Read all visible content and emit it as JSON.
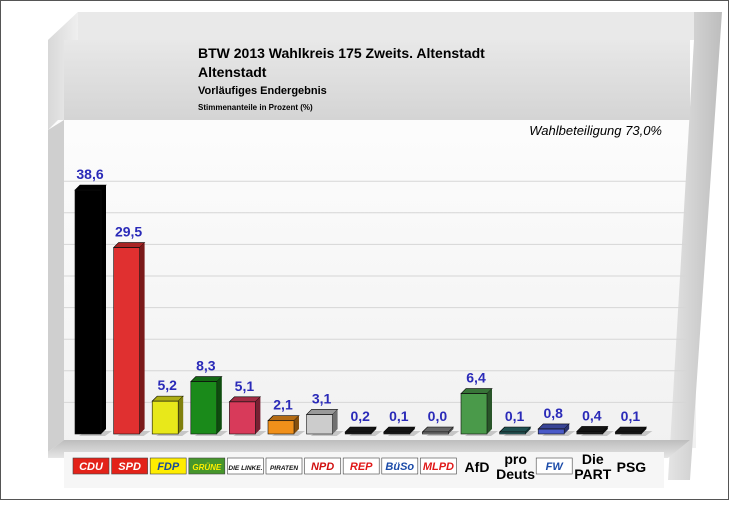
{
  "header": {
    "title_line1": "BTW 2013 Wahlkreis 175 Zweits. Altenstadt",
    "title_line2": "Altenstadt",
    "subtitle": "Vorläufiges Endergebnis",
    "unit_note": "Stimmenanteile in Prozent (%)",
    "turnout": "Wahlbeteiligung 73,0%"
  },
  "chart_data": {
    "type": "bar",
    "title": "BTW 2013 Wahlkreis 175 Zweits. Altenstadt",
    "ylim": [
      0,
      40
    ],
    "grid": true,
    "categories": [
      "CDU",
      "SPD",
      "FDP",
      "GRÜNE",
      "DIE LINKE.",
      "PIRATEN",
      "NPD",
      "REP",
      "BüSo",
      "MLPD",
      "AfD",
      "pro Deuts",
      "FW",
      "Die PART",
      "PSG"
    ],
    "values": [
      38.6,
      29.5,
      5.2,
      8.3,
      5.1,
      2.1,
      3.1,
      0.2,
      0.1,
      0.0,
      6.4,
      0.1,
      0.8,
      0.4,
      0.1
    ],
    "value_labels": [
      "38,6",
      "29,5",
      "5,2",
      "8,3",
      "5,1",
      "2,1",
      "3,1",
      "0,2",
      "0,1",
      "0,0",
      "6,4",
      "0,1",
      "0,8",
      "0,4",
      "0,1"
    ],
    "colors": [
      "#000000",
      "#e03030",
      "#e8e81a",
      "#1a8a1a",
      "#d83a5a",
      "#f0901a",
      "#cccccc",
      "#1a1a1a",
      "#1a1a1a",
      "#888888",
      "#4a9a4a",
      "#2a6a6a",
      "#4a5ac8",
      "#1a1a1a",
      "#1a1a1a"
    ],
    "label_color": "#2a2ab8",
    "legend": [
      {
        "kind": "logo",
        "text": "CDU",
        "bg": "#e32219",
        "fg": "#ffffff"
      },
      {
        "kind": "logo",
        "text": "SPD",
        "bg": "#e32219",
        "fg": "#ffffff"
      },
      {
        "kind": "logo",
        "text": "FDP",
        "bg": "#ffed00",
        "fg": "#1a4a9a"
      },
      {
        "kind": "logo",
        "text": "GRÜNE",
        "bg": "#46962b",
        "fg": "#ffee00"
      },
      {
        "kind": "logo",
        "text": "DIE LINKE.",
        "bg": "#ffffff",
        "fg": "#111111"
      },
      {
        "kind": "logo",
        "text": "PIRATEN",
        "bg": "#ffffff",
        "fg": "#111111"
      },
      {
        "kind": "logo",
        "text": "NPD",
        "bg": "#ffffff",
        "fg": "#d01010"
      },
      {
        "kind": "logo",
        "text": "REP",
        "bg": "#ffffff",
        "fg": "#e01818"
      },
      {
        "kind": "logo",
        "text": "BüSo",
        "bg": "#ffffff",
        "fg": "#1a4aa8"
      },
      {
        "kind": "logo",
        "text": "MLPD",
        "bg": "#ffffff",
        "fg": "#e01818"
      },
      {
        "kind": "text",
        "lines": [
          "AfD"
        ]
      },
      {
        "kind": "text",
        "lines": [
          "pro",
          "Deuts"
        ]
      },
      {
        "kind": "logo",
        "text": "FW",
        "bg": "#ffffff",
        "fg": "#1a4aa8"
      },
      {
        "kind": "text",
        "lines": [
          "Die",
          "PART"
        ]
      },
      {
        "kind": "text",
        "lines": [
          "PSG"
        ]
      }
    ]
  }
}
